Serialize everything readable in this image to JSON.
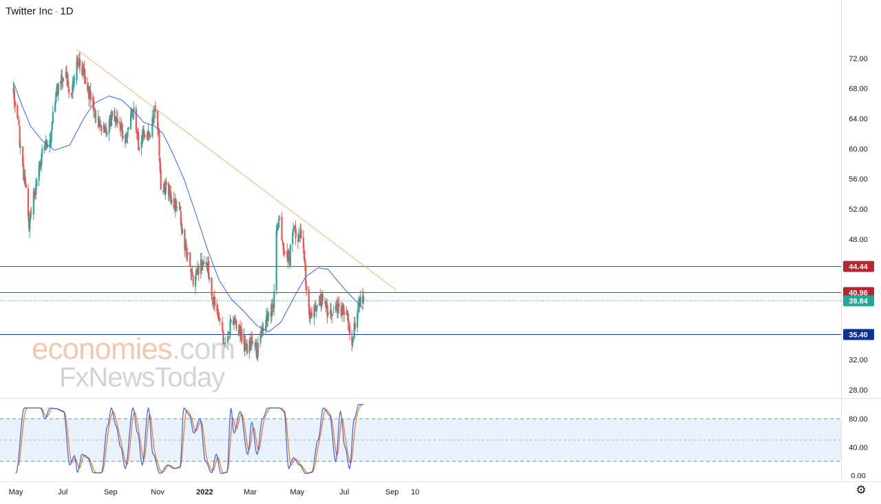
{
  "header": {
    "symbol": "Twitter Inc",
    "interval": "1D",
    "separator": "·"
  },
  "watermark": {
    "line1_part1": "economies",
    "line1_part2": ".com",
    "line2": "FxNewsToday"
  },
  "chart_data": {
    "type": "candlestick",
    "ylim": [
      27,
      77
    ],
    "y_ticks": [
      28,
      32,
      36,
      40,
      44,
      48,
      52,
      56,
      60,
      64,
      68,
      72
    ],
    "x_ticks": [
      {
        "label": "May",
        "x": "2021-05-01"
      },
      {
        "label": "Jul",
        "x": "2021-07-01"
      },
      {
        "label": "Sep",
        "x": "2021-09-01"
      },
      {
        "label": "Nov",
        "x": "2021-11-01"
      },
      {
        "label": "2022",
        "x": "2022-01-01"
      },
      {
        "label": "Mar",
        "x": "2022-03-01"
      },
      {
        "label": "May",
        "x": "2022-05-01"
      },
      {
        "label": "Jul",
        "x": "2022-07-01"
      },
      {
        "label": "Sep",
        "x": "2022-09-01"
      },
      {
        "label": "10",
        "x": "2022-10-01"
      }
    ],
    "price_path": [
      [
        "2021-04-28",
        67.5
      ],
      [
        "2021-05-04",
        63.5
      ],
      [
        "2021-05-09",
        57.5
      ],
      [
        "2021-05-14",
        54.5
      ],
      [
        "2021-05-18",
        50.0
      ],
      [
        "2021-05-24",
        53.5
      ],
      [
        "2021-05-31",
        57.0
      ],
      [
        "2021-06-07",
        61.0
      ],
      [
        "2021-06-14",
        60.5
      ],
      [
        "2021-06-22",
        67.5
      ],
      [
        "2021-06-30",
        69.5
      ],
      [
        "2021-07-05",
        70.0
      ],
      [
        "2021-07-10",
        66.0
      ],
      [
        "2021-07-18",
        71.5
      ],
      [
        "2021-07-26",
        70.5
      ],
      [
        "2021-08-03",
        67.5
      ],
      [
        "2021-08-11",
        65.0
      ],
      [
        "2021-08-19",
        62.5
      ],
      [
        "2021-08-27",
        63.0
      ],
      [
        "2021-09-04",
        64.5
      ],
      [
        "2021-09-12",
        63.5
      ],
      [
        "2021-09-20",
        60.5
      ],
      [
        "2021-09-30",
        65.5
      ],
      [
        "2021-10-08",
        60.0
      ],
      [
        "2021-10-14",
        62.5
      ],
      [
        "2021-10-21",
        61.5
      ],
      [
        "2021-10-28",
        65.5
      ],
      [
        "2021-11-02",
        62.0
      ],
      [
        "2021-11-05",
        55.0
      ],
      [
        "2021-11-12",
        54.5
      ],
      [
        "2021-11-20",
        53.0
      ],
      [
        "2021-11-28",
        52.5
      ],
      [
        "2021-12-05",
        47.5
      ],
      [
        "2021-12-11",
        46.0
      ],
      [
        "2021-12-17",
        42.5
      ],
      [
        "2021-12-26",
        44.5
      ],
      [
        "2022-01-05",
        44.0
      ],
      [
        "2022-01-12",
        40.0
      ],
      [
        "2022-01-20",
        37.0
      ],
      [
        "2022-01-27",
        33.5
      ],
      [
        "2022-02-03",
        36.5
      ],
      [
        "2022-02-11",
        37.0
      ],
      [
        "2022-02-18",
        35.0
      ],
      [
        "2022-02-25",
        33.5
      ],
      [
        "2022-03-04",
        34.5
      ],
      [
        "2022-03-10",
        33.0
      ],
      [
        "2022-03-17",
        36.0
      ],
      [
        "2022-03-24",
        38.0
      ],
      [
        "2022-03-31",
        39.0
      ],
      [
        "2022-04-04",
        49.5
      ],
      [
        "2022-04-08",
        50.5
      ],
      [
        "2022-04-14",
        46.0
      ],
      [
        "2022-04-21",
        45.5
      ],
      [
        "2022-04-25",
        49.5
      ],
      [
        "2022-05-02",
        48.5
      ],
      [
        "2022-05-08",
        49.0
      ],
      [
        "2022-05-13",
        41.0
      ],
      [
        "2022-05-18",
        37.5
      ],
      [
        "2022-05-25",
        39.0
      ],
      [
        "2022-06-02",
        40.0
      ],
      [
        "2022-06-09",
        38.0
      ],
      [
        "2022-06-17",
        38.5
      ],
      [
        "2022-06-24",
        39.0
      ],
      [
        "2022-07-01",
        38.5
      ],
      [
        "2022-07-07",
        37.0
      ],
      [
        "2022-07-11",
        33.5
      ],
      [
        "2022-07-14",
        36.0
      ],
      [
        "2022-07-20",
        39.5
      ],
      [
        "2022-07-26",
        39.84
      ]
    ],
    "moving_average": [
      [
        "2021-04-28",
        68.8
      ],
      [
        "2021-05-08",
        66.0
      ],
      [
        "2021-05-20",
        63.0
      ],
      [
        "2021-06-05",
        61.0
      ],
      [
        "2021-06-20",
        59.8
      ],
      [
        "2021-07-10",
        60.5
      ],
      [
        "2021-07-28",
        64.0
      ],
      [
        "2021-08-10",
        66.0
      ],
      [
        "2021-08-30",
        67.0
      ],
      [
        "2021-09-15",
        66.5
      ],
      [
        "2021-10-01",
        65.0
      ],
      [
        "2021-10-14",
        63.5
      ],
      [
        "2021-10-28",
        63.0
      ],
      [
        "2021-11-08",
        62.0
      ],
      [
        "2021-11-20",
        59.5
      ],
      [
        "2021-12-05",
        56.0
      ],
      [
        "2021-12-20",
        51.5
      ],
      [
        "2022-01-05",
        46.5
      ],
      [
        "2022-01-20",
        42.5
      ],
      [
        "2022-02-05",
        40.0
      ],
      [
        "2022-02-20",
        38.5
      ],
      [
        "2022-03-10",
        36.5
      ],
      [
        "2022-03-25",
        35.7
      ],
      [
        "2022-04-10",
        37.0
      ],
      [
        "2022-04-28",
        40.5
      ],
      [
        "2022-05-12",
        43.0
      ],
      [
        "2022-05-28",
        44.2
      ],
      [
        "2022-06-10",
        44.0
      ],
      [
        "2022-06-22",
        42.5
      ],
      [
        "2022-07-05",
        41.0
      ],
      [
        "2022-07-16",
        39.8
      ],
      [
        "2022-07-26",
        38.8
      ]
    ],
    "trend_line": {
      "from": [
        "2021-07-19",
        73.2
      ],
      "to": [
        "2022-09-07",
        41.2
      ],
      "color": "#f9b26b"
    },
    "levels": [
      {
        "label": "44.44",
        "value": 44.44,
        "color": "#b22833",
        "style": "solid"
      },
      {
        "label": "40.96",
        "value": 40.96,
        "color": "#b22833",
        "style": "solid"
      },
      {
        "label": "39.84",
        "value": 39.84,
        "color": "#26a69a",
        "style": "dotted"
      },
      {
        "label": "35.40",
        "value": 35.4,
        "color": "#0c3299",
        "style": "solid"
      }
    ],
    "colors": {
      "up": "#26a69a",
      "down": "#ef5350",
      "ma": "#2962ff"
    },
    "oscillator": {
      "type": "stochastic",
      "ylim": [
        -8,
        108
      ],
      "y_ticks": [
        0,
        40,
        80
      ],
      "y_tick_labels": [
        "0.00",
        "40.00",
        "80.00"
      ],
      "band": [
        20,
        80
      ],
      "midline": 50,
      "band_color": "#e8f2fd",
      "k_color": "#2962ff",
      "d_color": "#ff6d00",
      "k_path": [
        [
          "2021-05-01",
          3
        ],
        [
          "2021-05-12",
          95
        ],
        [
          "2021-05-22",
          95
        ],
        [
          "2021-06-02",
          95
        ],
        [
          "2021-06-08",
          80
        ],
        [
          "2021-06-14",
          95
        ],
        [
          "2021-06-22",
          94
        ],
        [
          "2021-07-02",
          90
        ],
        [
          "2021-07-10",
          15
        ],
        [
          "2021-07-16",
          28
        ],
        [
          "2021-07-20",
          5
        ],
        [
          "2021-07-26",
          30
        ],
        [
          "2021-08-02",
          25
        ],
        [
          "2021-08-10",
          4
        ],
        [
          "2021-08-20",
          4
        ],
        [
          "2021-08-28",
          70
        ],
        [
          "2021-09-02",
          95
        ],
        [
          "2021-09-08",
          70
        ],
        [
          "2021-09-14",
          40
        ],
        [
          "2021-09-20",
          10
        ],
        [
          "2021-09-30",
          95
        ],
        [
          "2021-10-06",
          60
        ],
        [
          "2021-10-12",
          15
        ],
        [
          "2021-10-20",
          95
        ],
        [
          "2021-10-26",
          30
        ],
        [
          "2021-11-04",
          3
        ],
        [
          "2021-11-14",
          15
        ],
        [
          "2021-11-22",
          10
        ],
        [
          "2021-11-30",
          12
        ],
        [
          "2021-12-05",
          95
        ],
        [
          "2021-12-12",
          85
        ],
        [
          "2021-12-18",
          60
        ],
        [
          "2021-12-26",
          80
        ],
        [
          "2022-01-02",
          20
        ],
        [
          "2022-01-10",
          4
        ],
        [
          "2022-01-16",
          30
        ],
        [
          "2022-01-22",
          3
        ],
        [
          "2022-01-30",
          5
        ],
        [
          "2022-02-04",
          95
        ],
        [
          "2022-02-08",
          60
        ],
        [
          "2022-02-16",
          90
        ],
        [
          "2022-02-26",
          30
        ],
        [
          "2022-03-03",
          75
        ],
        [
          "2022-03-10",
          30
        ],
        [
          "2022-03-17",
          80
        ],
        [
          "2022-03-24",
          95
        ],
        [
          "2022-04-02",
          95
        ],
        [
          "2022-04-08",
          95
        ],
        [
          "2022-04-14",
          90
        ],
        [
          "2022-04-20",
          10
        ],
        [
          "2022-04-26",
          25
        ],
        [
          "2022-05-04",
          15
        ],
        [
          "2022-05-12",
          3
        ],
        [
          "2022-05-20",
          5
        ],
        [
          "2022-05-28",
          50
        ],
        [
          "2022-06-04",
          95
        ],
        [
          "2022-06-12",
          85
        ],
        [
          "2022-06-20",
          20
        ],
        [
          "2022-06-26",
          90
        ],
        [
          "2022-07-02",
          40
        ],
        [
          "2022-07-08",
          10
        ],
        [
          "2022-07-14",
          80
        ],
        [
          "2022-07-20",
          100
        ],
        [
          "2022-07-26",
          100
        ]
      ]
    }
  }
}
